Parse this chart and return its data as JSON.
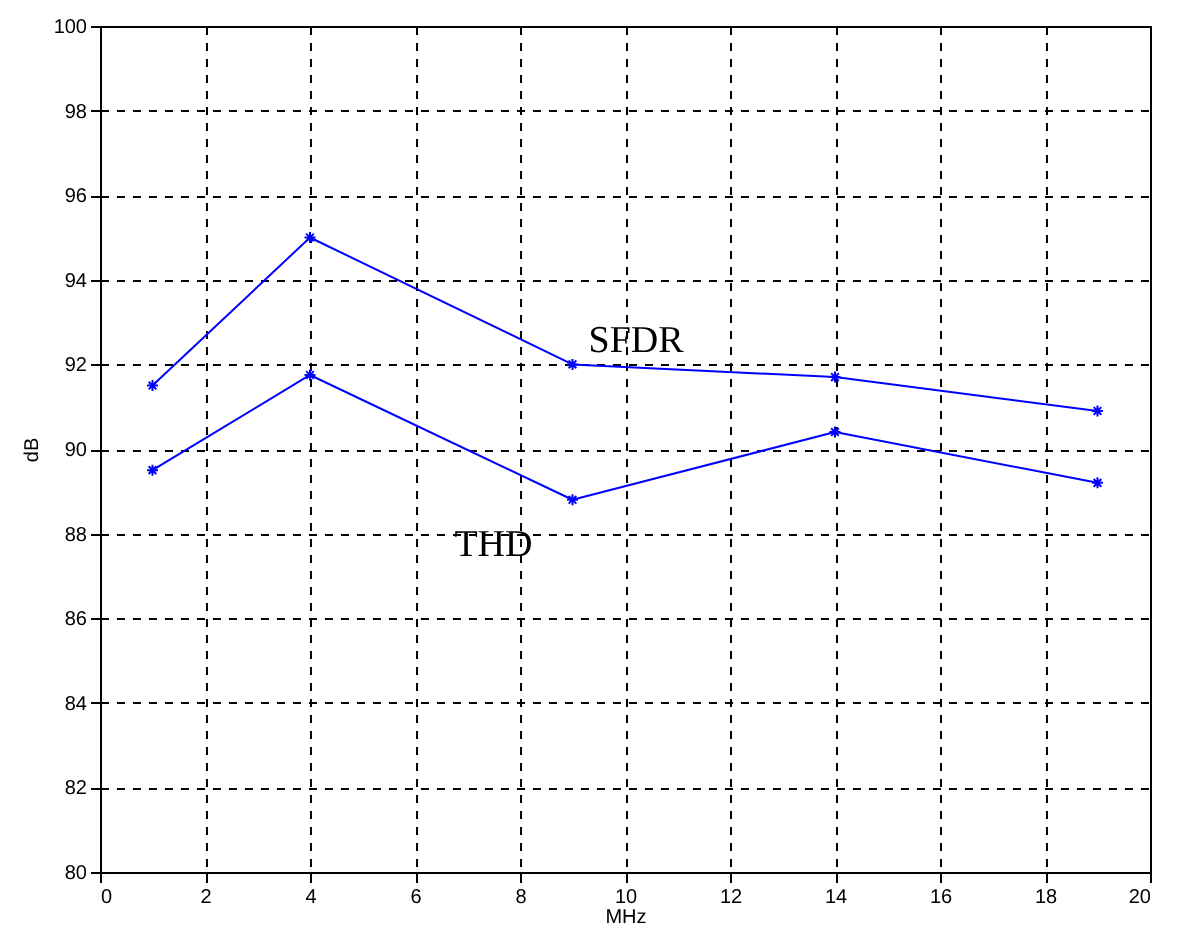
{
  "chart_data": {
    "type": "line",
    "xlabel": "MHz",
    "ylabel": "dB",
    "x": [
      1,
      4,
      9,
      14,
      19
    ],
    "series": [
      {
        "name": "SFDR",
        "color": "#0000ff",
        "values": [
          91.5,
          95.0,
          92.0,
          91.7,
          90.9
        ]
      },
      {
        "name": "THD",
        "color": "#0000ff",
        "values": [
          89.5,
          91.75,
          88.8,
          90.4,
          89.2
        ]
      }
    ],
    "xlim": [
      0,
      20
    ],
    "xticks": [
      0,
      2,
      4,
      6,
      8,
      10,
      12,
      14,
      16,
      18,
      20
    ],
    "ylim": [
      80,
      100
    ],
    "yticks": [
      80,
      82,
      84,
      86,
      88,
      90,
      92,
      94,
      96,
      98,
      100
    ],
    "grid": true,
    "marker": "cross",
    "line_style": "solid"
  }
}
